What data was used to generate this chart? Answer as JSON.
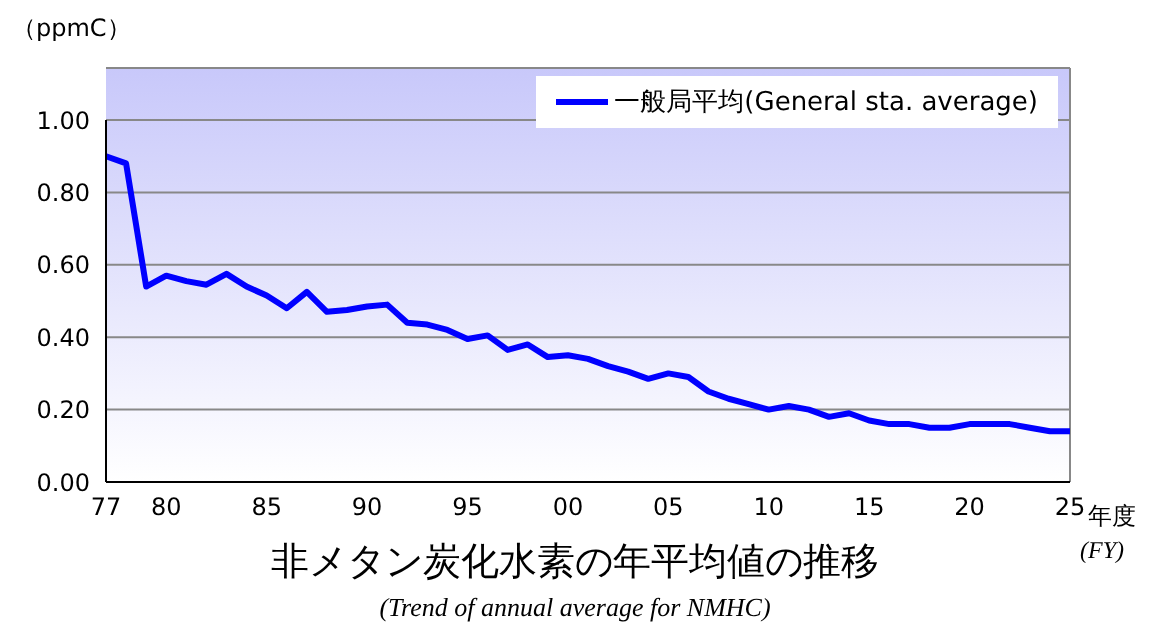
{
  "chart_data": {
    "type": "line",
    "title": "非メタン炭化水素の年平均値の推移",
    "subtitle": "(Trend of annual average for NMHC)",
    "ylabel": "（ppmC）",
    "xlabel": "年度",
    "annotations": [
      "(FY)"
    ],
    "categories": [
      "77",
      null,
      null,
      "80",
      null,
      null,
      null,
      null,
      "85",
      null,
      null,
      null,
      null,
      "90",
      null,
      null,
      null,
      null,
      "95",
      null,
      null,
      null,
      null,
      "00",
      null,
      null,
      null,
      null,
      "05",
      null,
      null,
      null,
      null,
      "10",
      null,
      null,
      null,
      null,
      "15",
      null,
      null,
      null,
      null,
      "20",
      null,
      null,
      null,
      null,
      "25"
    ],
    "series": [
      {
        "name": "一般局平均(General sta. average)",
        "color": "#0000ff",
        "values": [
          0.9,
          0.88,
          0.54,
          0.57,
          0.555,
          0.545,
          0.575,
          0.54,
          0.515,
          0.48,
          0.525,
          0.47,
          0.475,
          0.485,
          0.49,
          0.44,
          0.435,
          0.42,
          0.395,
          0.405,
          0.365,
          0.38,
          0.345,
          0.35,
          0.34,
          0.32,
          0.305,
          0.285,
          0.3,
          0.29,
          0.25,
          0.23,
          0.215,
          0.2,
          0.21,
          0.2,
          0.18,
          0.19,
          0.17,
          0.16,
          0.16,
          0.15,
          0.15,
          0.16,
          0.16,
          0.16,
          0.15,
          0.14,
          0.14
        ]
      }
    ],
    "ylim": [
      0,
      1
    ],
    "yticks": [
      {
        "value": 0,
        "label": "0.00"
      },
      {
        "value": 0.2,
        "label": "0.20"
      },
      {
        "value": 0.4,
        "label": "0.40"
      },
      {
        "value": 0.6,
        "label": "0.60"
      },
      {
        "value": 0.8,
        "label": "0.80"
      },
      {
        "value": 1,
        "label": "1.00"
      }
    ],
    "grid": "y",
    "legend": "top right",
    "marker": "none",
    "line_style": "solid"
  }
}
